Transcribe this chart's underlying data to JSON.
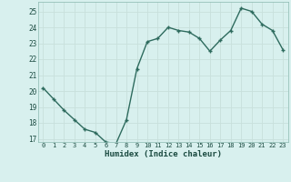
{
  "x": [
    0,
    1,
    2,
    3,
    4,
    5,
    6,
    7,
    8,
    9,
    10,
    11,
    12,
    13,
    14,
    15,
    16,
    17,
    18,
    19,
    20,
    21,
    22,
    23
  ],
  "y": [
    20.2,
    19.5,
    18.8,
    18.2,
    17.6,
    17.4,
    16.8,
    16.7,
    18.2,
    21.4,
    23.1,
    23.3,
    24.0,
    23.8,
    23.7,
    23.3,
    22.5,
    23.2,
    23.8,
    25.2,
    25.0,
    24.2,
    23.8,
    22.6
  ],
  "xlabel": "Humidex (Indice chaleur)",
  "ylim": [
    16.8,
    25.6
  ],
  "xlim": [
    -0.5,
    23.5
  ],
  "yticks": [
    17,
    18,
    19,
    20,
    21,
    22,
    23,
    24,
    25
  ],
  "xticks": [
    0,
    1,
    2,
    3,
    4,
    5,
    6,
    7,
    8,
    9,
    10,
    11,
    12,
    13,
    14,
    15,
    16,
    17,
    18,
    19,
    20,
    21,
    22,
    23
  ],
  "line_color": "#2e6b5e",
  "marker_color": "#2e6b5e",
  "bg_color": "#d8f0ee",
  "grid_color": "#c8e0dc",
  "font_color": "#1a4a40"
}
